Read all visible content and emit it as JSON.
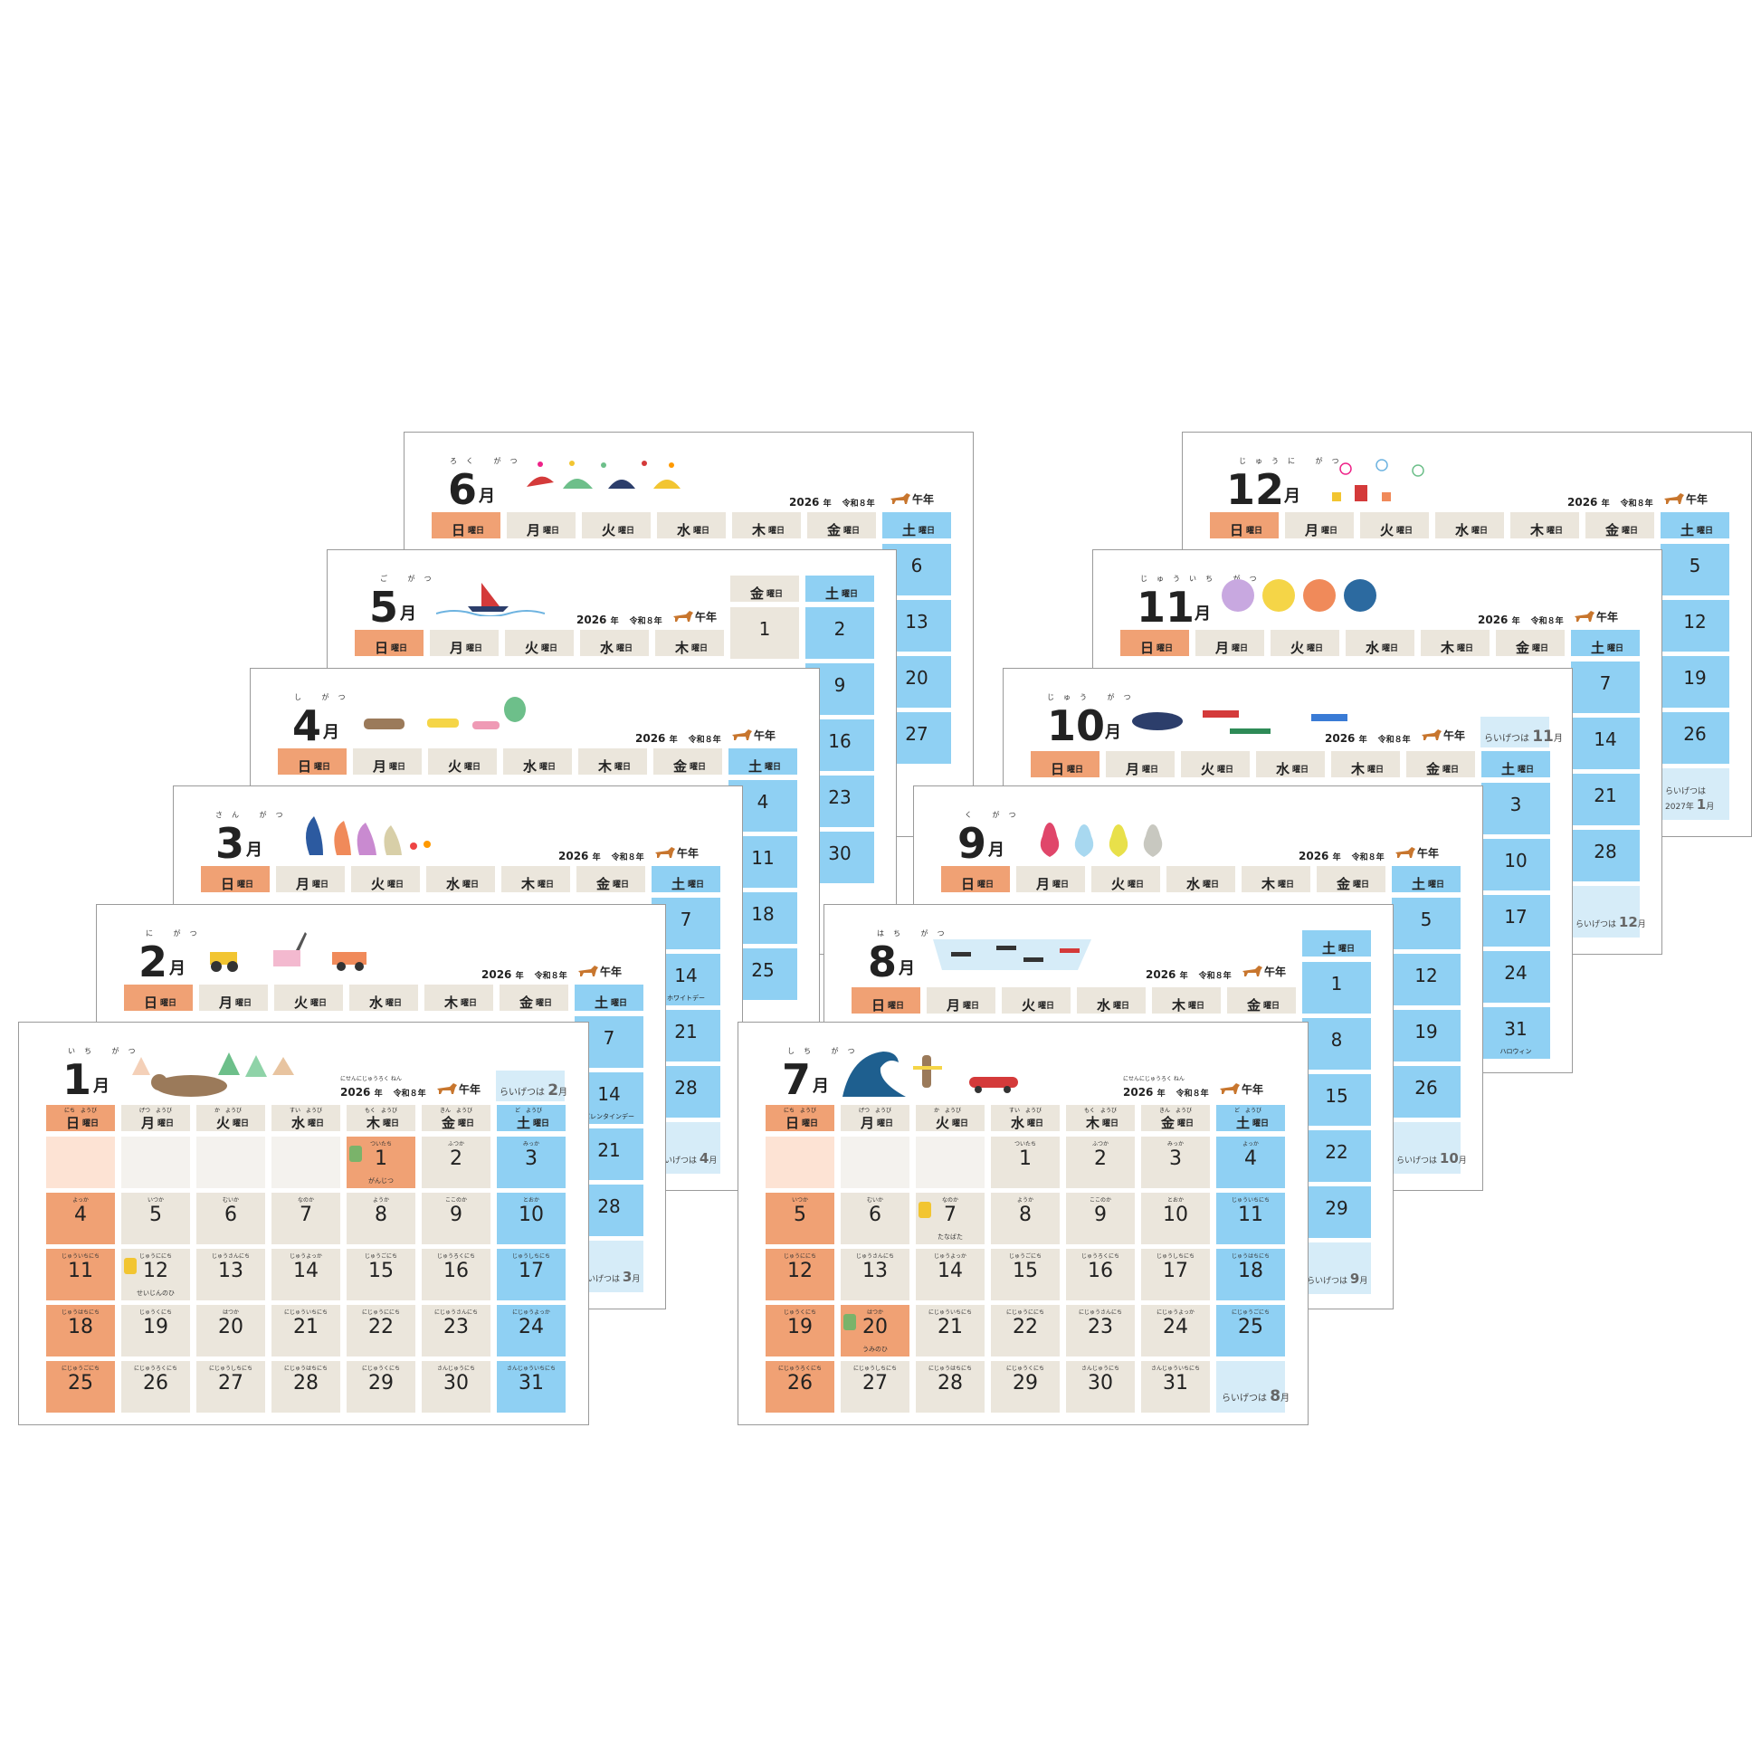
{
  "headers": {
    "weekdays": [
      "日",
      "月",
      "火",
      "水",
      "木",
      "金",
      "土"
    ],
    "weekday_ruby": [
      "にち　ようび",
      "げつ　ようび",
      "か　ようび",
      "すい　ようび",
      "もく　ようび",
      "きん　ようび",
      "ど　ようび"
    ],
    "youbi": "曜日",
    "year": "2026",
    "year_unit": "年",
    "reiwa": "令和８年",
    "eto": "午年",
    "year_ruby": "にせんにじゅうろく ねん",
    "reiwa_ruby": "れいわ はちねん",
    "eto_ruby": "うま どし",
    "month_suffix": "月"
  },
  "next_label": "らいげつは",
  "jan": {
    "month": "1",
    "ruby": "いち がつ",
    "next": "2",
    "days": [
      {
        "d": "",
        "b": true
      },
      {
        "d": "",
        "b": true
      },
      {
        "d": "",
        "b": true
      },
      {
        "d": "",
        "b": true
      },
      {
        "d": "1",
        "r": "ついたち",
        "h": "がんじつ",
        "hol": true
      },
      {
        "d": "2",
        "r": "ふつか"
      },
      {
        "d": "3",
        "r": "みっか"
      },
      {
        "d": "4",
        "r": "よっか"
      },
      {
        "d": "5",
        "r": "いつか"
      },
      {
        "d": "6",
        "r": "むいか"
      },
      {
        "d": "7",
        "r": "なのか"
      },
      {
        "d": "8",
        "r": "ようか"
      },
      {
        "d": "9",
        "r": "ここのか"
      },
      {
        "d": "10",
        "r": "とおか"
      },
      {
        "d": "11",
        "r": "じゅういちにち"
      },
      {
        "d": "12",
        "r": "じゅうににち",
        "h": "せいじんのひ"
      },
      {
        "d": "13",
        "r": "じゅうさんにち"
      },
      {
        "d": "14",
        "r": "じゅうよっか"
      },
      {
        "d": "15",
        "r": "じゅうごにち"
      },
      {
        "d": "16",
        "r": "じゅうろくにち"
      },
      {
        "d": "17",
        "r": "じゅうしちにち"
      },
      {
        "d": "18",
        "r": "じゅうはちにち"
      },
      {
        "d": "19",
        "r": "じゅうくにち"
      },
      {
        "d": "20",
        "r": "はつか"
      },
      {
        "d": "21",
        "r": "にじゅういちにち"
      },
      {
        "d": "22",
        "r": "にじゅうににち"
      },
      {
        "d": "23",
        "r": "にじゅうさんにち"
      },
      {
        "d": "24",
        "r": "にじゅうよっか"
      },
      {
        "d": "25",
        "r": "にじゅうごにち"
      },
      {
        "d": "26",
        "r": "にじゅうろくにち"
      },
      {
        "d": "27",
        "r": "にじゅうしちにち"
      },
      {
        "d": "28",
        "r": "にじゅうはちにち"
      },
      {
        "d": "29",
        "r": "にじゅうくにち"
      },
      {
        "d": "30",
        "r": "さんじゅうにち"
      },
      {
        "d": "31",
        "r": "さんじゅういちにち"
      }
    ]
  },
  "jul": {
    "month": "7",
    "ruby": "しち がつ",
    "next": "8",
    "days": [
      {
        "d": "",
        "b": true
      },
      {
        "d": "",
        "b": true
      },
      {
        "d": "",
        "b": true
      },
      {
        "d": "1",
        "r": "ついたち"
      },
      {
        "d": "2",
        "r": "ふつか"
      },
      {
        "d": "3",
        "r": "みっか"
      },
      {
        "d": "4",
        "r": "よっか"
      },
      {
        "d": "5",
        "r": "いつか"
      },
      {
        "d": "6",
        "r": "むいか"
      },
      {
        "d": "7",
        "r": "なのか",
        "h": "たなばた"
      },
      {
        "d": "8",
        "r": "ようか"
      },
      {
        "d": "9",
        "r": "ここのか"
      },
      {
        "d": "10",
        "r": "とおか"
      },
      {
        "d": "11",
        "r": "じゅういちにち"
      },
      {
        "d": "12",
        "r": "じゅうににち"
      },
      {
        "d": "13",
        "r": "じゅうさんにち"
      },
      {
        "d": "14",
        "r": "じゅうよっか"
      },
      {
        "d": "15",
        "r": "じゅうごにち"
      },
      {
        "d": "16",
        "r": "じゅうろくにち"
      },
      {
        "d": "17",
        "r": "じゅうしちにち"
      },
      {
        "d": "18",
        "r": "じゅうはちにち"
      },
      {
        "d": "19",
        "r": "じゅうくにち"
      },
      {
        "d": "20",
        "r": "はつか",
        "h": "うみのひ",
        "hol": true
      },
      {
        "d": "21",
        "r": "にじゅういちにち"
      },
      {
        "d": "22",
        "r": "にじゅうににち"
      },
      {
        "d": "23",
        "r": "にじゅうさんにち"
      },
      {
        "d": "24",
        "r": "にじゅうよっか"
      },
      {
        "d": "25",
        "r": "にじゅうごにち"
      },
      {
        "d": "26",
        "r": "にじゅうろくにち"
      },
      {
        "d": "27",
        "r": "にじゅうしちにち"
      },
      {
        "d": "28",
        "r": "にじゅうはちにち"
      },
      {
        "d": "29",
        "r": "にじゅうくにち"
      },
      {
        "d": "30",
        "r": "さんじゅうにち"
      },
      {
        "d": "31",
        "r": "さんじゅういちにち"
      }
    ]
  },
  "back_sheets": [
    {
      "month": "2",
      "ruby": "に がつ",
      "peek": [
        {
          "d": "7",
          "r": "なのか"
        },
        {
          "d": "14",
          "r": "じゅうよっか",
          "h": "バレンタインデー"
        },
        {
          "d": "21",
          "r": "にじゅういちにち"
        },
        {
          "d": "28",
          "r": "にじゅうはちにち"
        }
      ],
      "next": "3"
    },
    {
      "month": "3",
      "ruby": "さん がつ",
      "peek": [
        {
          "d": "7",
          "r": "なのか"
        },
        {
          "d": "14",
          "r": "じゅうよっか",
          "h": "ホワイトデー"
        },
        {
          "d": "21",
          "r": "にじゅういちにち"
        },
        {
          "d": "28",
          "r": "にじゅうはちにち"
        }
      ],
      "next": "4"
    },
    {
      "month": "4",
      "ruby": "し がつ",
      "peek": [
        {
          "d": "4",
          "r": "よっか"
        },
        {
          "d": "11",
          "r": "じゅういちにち"
        },
        {
          "d": "18",
          "r": "じゅうはちにち"
        },
        {
          "d": "25",
          "r": "にじゅうごにち"
        }
      ]
    },
    {
      "month": "5",
      "ruby": "ご がつ",
      "peek": [
        {
          "d": "2",
          "r": "ふつか"
        },
        {
          "d": "9",
          "r": "ここのか"
        },
        {
          "d": "16",
          "r": "じゅうろくにち"
        },
        {
          "d": "23",
          "r": "にじゅうさんにち"
        },
        {
          "d": "30",
          "r": "さんじゅうにち"
        }
      ],
      "fri1": {
        "d": "1",
        "r": "ついたち"
      }
    },
    {
      "month": "6",
      "ruby": "ろく がつ",
      "peek": [
        {
          "d": "6",
          "r": "むいか"
        },
        {
          "d": "13",
          "r": "じゅうさんにち"
        },
        {
          "d": "20",
          "r": "はつか"
        },
        {
          "d": "27",
          "r": "にじゅうしちにち"
        }
      ]
    },
    {
      "month": "8",
      "ruby": "はち がつ",
      "peek": [
        {
          "d": "1",
          "r": "ついたち"
        },
        {
          "d": "8",
          "r": "ようか"
        },
        {
          "d": "15",
          "r": "じゅうごにち"
        },
        {
          "d": "22",
          "r": "にじゅうににち"
        },
        {
          "d": "29",
          "r": "にじゅうくにち"
        }
      ],
      "next": "9"
    },
    {
      "month": "9",
      "ruby": "く がつ",
      "peek": [
        {
          "d": "5",
          "r": "いつか"
        },
        {
          "d": "12",
          "r": "じゅうににち"
        },
        {
          "d": "19",
          "r": "じゅうくにち"
        },
        {
          "d": "26",
          "r": "にじゅうろくにち"
        }
      ],
      "next": "10"
    },
    {
      "month": "10",
      "ruby": "じゅう がつ",
      "peek": [
        {
          "d": "3",
          "r": "みっか"
        },
        {
          "d": "10",
          "r": "とおか"
        },
        {
          "d": "17",
          "r": "じゅうしちにち"
        },
        {
          "d": "24",
          "r": "にじゅうよっか"
        },
        {
          "d": "31",
          "r": "さんじゅういちにち",
          "h": "ハロウィン"
        }
      ],
      "next": "11"
    },
    {
      "month": "11",
      "ruby": "じゅういち がつ",
      "peek": [
        {
          "d": "7",
          "r": "なのか"
        },
        {
          "d": "14",
          "r": "じゅうよっか"
        },
        {
          "d": "21",
          "r": "にじゅういちにち"
        },
        {
          "d": "28",
          "r": "にじゅうはちにち"
        }
      ],
      "next": "12"
    },
    {
      "month": "12",
      "ruby": "じゅうに がつ",
      "peek": [
        {
          "d": "5",
          "r": "いつか"
        },
        {
          "d": "12",
          "r": "じゅうににち"
        },
        {
          "d": "19",
          "r": "じゅうくにち"
        },
        {
          "d": "26",
          "r": "にじゅうろくにち"
        }
      ],
      "next": "1",
      "next_year": "2027年"
    }
  ],
  "colors": {
    "sunday": "#f0a174",
    "saturday": "#8fd0f3",
    "weekday": "#ebe6dc",
    "next_month": "#d6ecf8"
  }
}
